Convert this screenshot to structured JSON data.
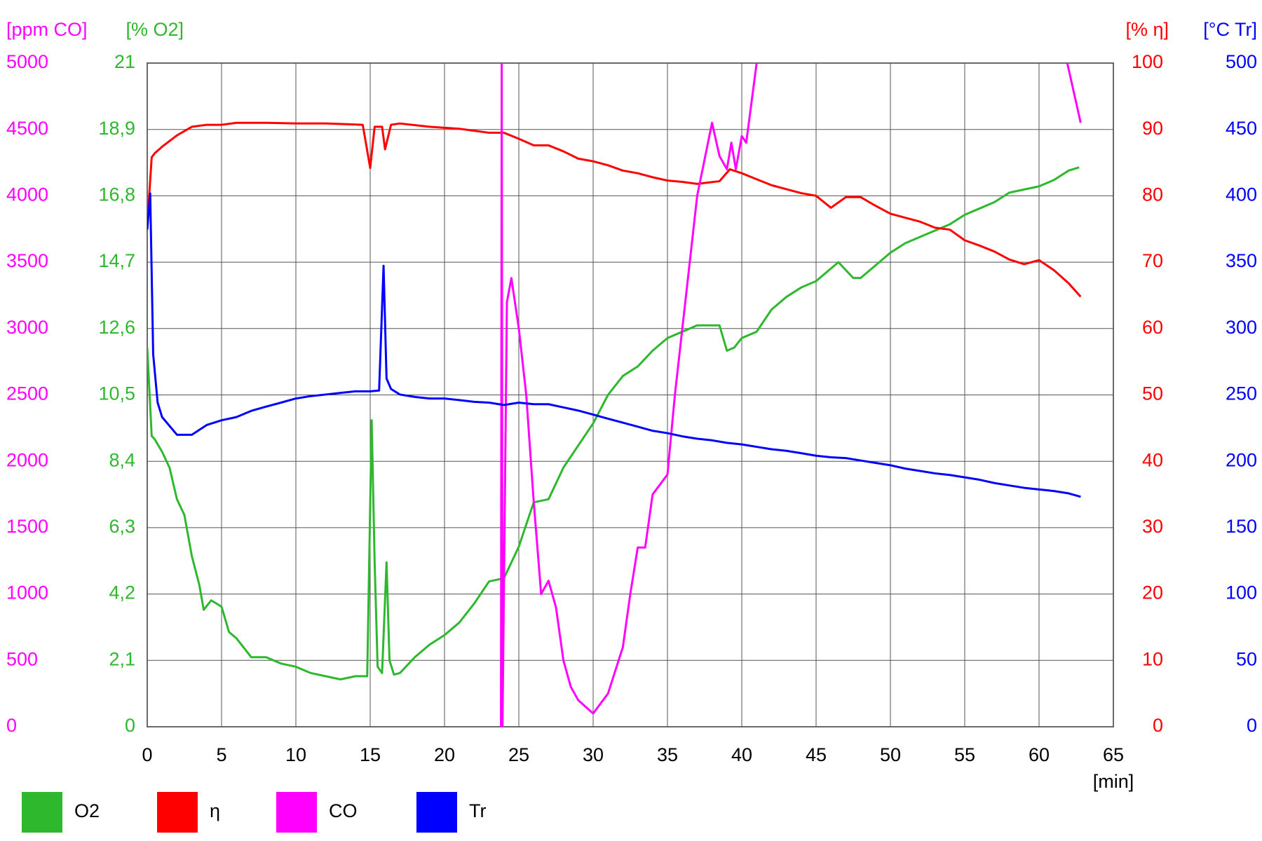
{
  "chart_data": {
    "type": "line",
    "x_label": "[min]",
    "xlim": [
      0,
      65
    ],
    "xticks": [
      0,
      5,
      10,
      15,
      20,
      25,
      30,
      35,
      40,
      45,
      50,
      55,
      60,
      65
    ],
    "y_label": "[ppm CO]",
    "ylim": [
      0,
      5000
    ],
    "yticks": [
      0,
      500,
      1000,
      1500,
      2000,
      2500,
      3000,
      3500,
      4000,
      4500,
      5000
    ],
    "y2_label": "[% O2]",
    "y2lim": [
      0,
      21
    ],
    "y2ticks": [
      0,
      {
        "value": 2.1,
        "label": "2,1"
      },
      {
        "value": 4.2,
        "label": "4,2"
      },
      {
        "value": 6.3,
        "label": "6,3"
      },
      {
        "value": 8.4,
        "label": "8,4"
      },
      {
        "value": 10.5,
        "label": "10,5"
      },
      {
        "value": 12.6,
        "label": "12,6"
      },
      {
        "value": 14.7,
        "label": "14,7"
      },
      {
        "value": 16.8,
        "label": "16,8"
      },
      {
        "value": 18.9,
        "label": "18,9"
      },
      21
    ],
    "y3_label": "[% η]",
    "y3lim": [
      0,
      100
    ],
    "y3ticks": [
      0,
      10,
      20,
      30,
      40,
      50,
      60,
      70,
      80,
      90,
      100
    ],
    "y4_label": "[°C Tr]",
    "y4lim": [
      0,
      500
    ],
    "y4ticks": [
      0,
      50,
      100,
      150,
      200,
      250,
      300,
      350,
      400,
      450,
      500
    ],
    "grid": true,
    "legend": "bottom",
    "series": [
      {
        "name": "O2",
        "color": "#2eb82e",
        "axis": "y2",
        "x": [
          0,
          0.3,
          0.5,
          1,
          1.5,
          2,
          2.5,
          3,
          3.5,
          3.8,
          4.3,
          5,
          5.5,
          6,
          7,
          8,
          9,
          10,
          11,
          12,
          13,
          14,
          14.8,
          15.1,
          15.3,
          15.5,
          15.8,
          16.1,
          16.3,
          16.6,
          17,
          18,
          19,
          20,
          21,
          22,
          23,
          24,
          25,
          26,
          27,
          28,
          29,
          30,
          31,
          32,
          33,
          34,
          35,
          36,
          37,
          38.5,
          39,
          39.5,
          40,
          41,
          42,
          43,
          44,
          45,
          46.5,
          47.5,
          48,
          49,
          50,
          51,
          52,
          53,
          54,
          55,
          56,
          57,
          58,
          59,
          60,
          61,
          62,
          62.7
        ],
        "values": [
          12.0,
          9.2,
          9.1,
          8.7,
          8.2,
          7.2,
          6.7,
          5.4,
          4.5,
          3.7,
          4.0,
          3.8,
          3.0,
          2.8,
          2.2,
          2.2,
          2.0,
          1.9,
          1.7,
          1.6,
          1.5,
          1.6,
          1.6,
          9.7,
          5.2,
          1.9,
          1.7,
          5.2,
          2.1,
          1.65,
          1.7,
          2.2,
          2.6,
          2.9,
          3.3,
          3.9,
          4.6,
          4.7,
          5.7,
          7.1,
          7.2,
          8.2,
          8.9,
          9.6,
          10.5,
          11.1,
          11.4,
          11.9,
          12.3,
          12.5,
          12.7,
          12.7,
          11.9,
          12.0,
          12.3,
          12.5,
          13.2,
          13.6,
          13.9,
          14.1,
          14.7,
          14.2,
          14.2,
          14.6,
          15.0,
          15.3,
          15.5,
          15.7,
          15.9,
          16.2,
          16.4,
          16.6,
          16.9,
          17.0,
          17.1,
          17.3,
          17.6,
          17.7
        ]
      },
      {
        "name": "η",
        "color": "#ff0000",
        "axis": "y3",
        "x": [
          0,
          0.3,
          0.5,
          1,
          2,
          3,
          4,
          5,
          6,
          8,
          10,
          12,
          14.5,
          15,
          15.3,
          15.8,
          16,
          16.4,
          17,
          19,
          21,
          23,
          24,
          25,
          26,
          27,
          28,
          29,
          30,
          31,
          32,
          33,
          34,
          35,
          36,
          37,
          38.5,
          39.2,
          40,
          41,
          42,
          43,
          44,
          45,
          46,
          47,
          48,
          49,
          50,
          51,
          52,
          53,
          54,
          55,
          56,
          57,
          58,
          59,
          60,
          61,
          62,
          62.8
        ],
        "values": [
          75.5,
          85.8,
          86.4,
          87.4,
          89.1,
          90.4,
          90.7,
          90.7,
          91.0,
          91.0,
          90.9,
          90.9,
          90.7,
          84.2,
          90.4,
          90.4,
          87.0,
          90.7,
          90.9,
          90.4,
          90.1,
          89.5,
          89.5,
          88.6,
          87.6,
          87.6,
          86.7,
          85.6,
          85.2,
          84.6,
          83.8,
          83.4,
          82.8,
          82.3,
          82.1,
          81.8,
          82.2,
          84.0,
          83.4,
          82.5,
          81.6,
          81.0,
          80.4,
          80.0,
          78.2,
          79.8,
          79.8,
          78.5,
          77.3,
          76.7,
          76.1,
          75.2,
          74.9,
          73.3,
          72.5,
          71.6,
          70.4,
          69.7,
          70.3,
          68.8,
          66.8,
          64.8
        ]
      },
      {
        "name": "CO",
        "color": "#ff00ff",
        "axis": "y",
        "x": [
          23.8,
          23.85,
          23.9,
          24.2,
          24.5,
          25,
          25.5,
          26,
          26.5,
          27,
          27.5,
          28,
          28.5,
          29,
          30,
          31,
          32,
          32.5,
          33,
          33.5,
          34,
          35,
          35.5,
          36,
          37,
          38,
          38.5,
          39,
          39.3,
          39.6,
          40,
          40.3,
          41,
          51,
          61.9,
          62.8
        ],
        "values": [
          0,
          5000,
          0,
          3200,
          3380,
          3000,
          2500,
          1700,
          1000,
          1100,
          900,
          500,
          300,
          200,
          100,
          250,
          600,
          1000,
          1350,
          1350,
          1750,
          1900,
          2500,
          3000,
          4000,
          4550,
          4300,
          4200,
          4400,
          4200,
          4450,
          4400,
          5000,
          null,
          5000,
          4550
        ]
      },
      {
        "name": "Tr",
        "color": "#0000ff",
        "axis": "y4",
        "x": [
          0,
          0.2,
          0.4,
          0.7,
          1,
          2,
          3,
          4,
          5,
          6,
          7,
          8,
          9,
          10,
          11,
          12,
          13,
          14,
          15,
          15.6,
          15.9,
          16.1,
          16.4,
          17,
          18,
          19,
          20,
          21,
          22,
          23,
          24,
          25,
          26,
          27,
          28,
          29,
          30,
          31,
          32,
          33,
          34,
          35,
          36,
          37,
          38,
          39,
          40,
          41,
          42,
          43,
          44,
          45,
          46,
          47,
          48,
          49,
          50,
          51,
          52,
          53,
          54,
          55,
          56,
          57,
          58,
          59,
          60,
          61,
          62,
          62.8
        ],
        "values": [
          374.5,
          401.8,
          280.6,
          244.2,
          233.3,
          220,
          220,
          227.3,
          230.9,
          233.3,
          238,
          241.2,
          244.2,
          247.3,
          249.1,
          250.3,
          251.5,
          252.7,
          252.7,
          253.3,
          347.3,
          262.4,
          254.5,
          250.3,
          248.5,
          247.3,
          247.3,
          246.1,
          244.8,
          244.2,
          242.4,
          244.2,
          243,
          243,
          240.6,
          238.2,
          235.2,
          232.1,
          229.1,
          226.1,
          223,
          221.2,
          218.8,
          217,
          215.8,
          213.9,
          212.7,
          210.9,
          209.1,
          207.9,
          206.1,
          204.2,
          203,
          202.4,
          200.6,
          198.8,
          197,
          194.5,
          192.7,
          190.9,
          189.7,
          187.9,
          186.1,
          183.6,
          181.8,
          180,
          178.8,
          177.6,
          175.8,
          173.3
        ]
      }
    ]
  }
}
